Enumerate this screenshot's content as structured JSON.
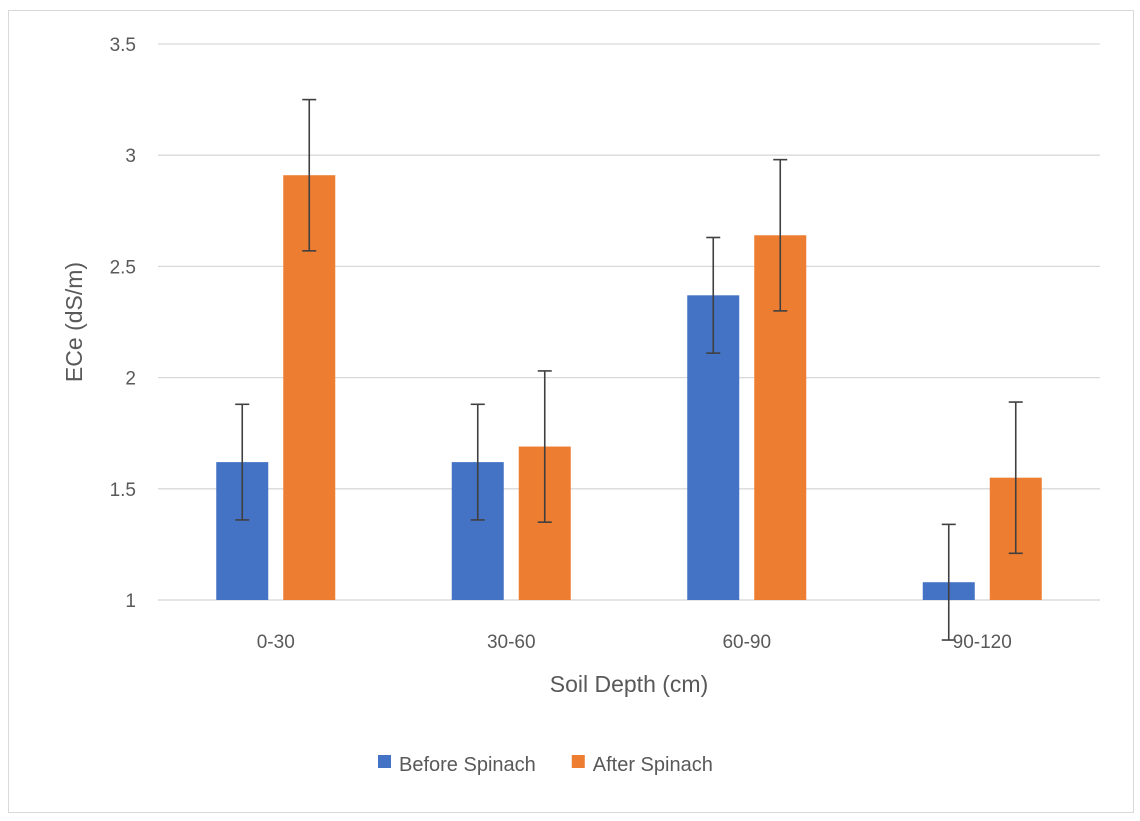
{
  "chart_data": {
    "type": "bar",
    "title": "",
    "xlabel": "Soil Depth (cm)",
    "ylabel": "ECe (dS/m)",
    "categories": [
      "0-30",
      "30-60",
      "60-90",
      "90-120"
    ],
    "ylim": [
      1,
      3.5
    ],
    "yticks": [
      "1",
      "1.5",
      "2",
      "2.5",
      "3",
      "3.5"
    ],
    "ytick_values": [
      1,
      1.5,
      2,
      2.5,
      3,
      3.5
    ],
    "grid": true,
    "legend_position": "bottom",
    "series": [
      {
        "name": "Before Spinach",
        "color": "#4472C4",
        "values": [
          1.62,
          1.62,
          2.37,
          1.08
        ],
        "error": [
          0.26,
          0.26,
          0.26,
          0.26
        ]
      },
      {
        "name": "After Spinach",
        "color": "#ED7D31",
        "values": [
          2.91,
          1.69,
          2.64,
          1.55
        ],
        "error": [
          0.34,
          0.34,
          0.34,
          0.34
        ]
      }
    ]
  }
}
